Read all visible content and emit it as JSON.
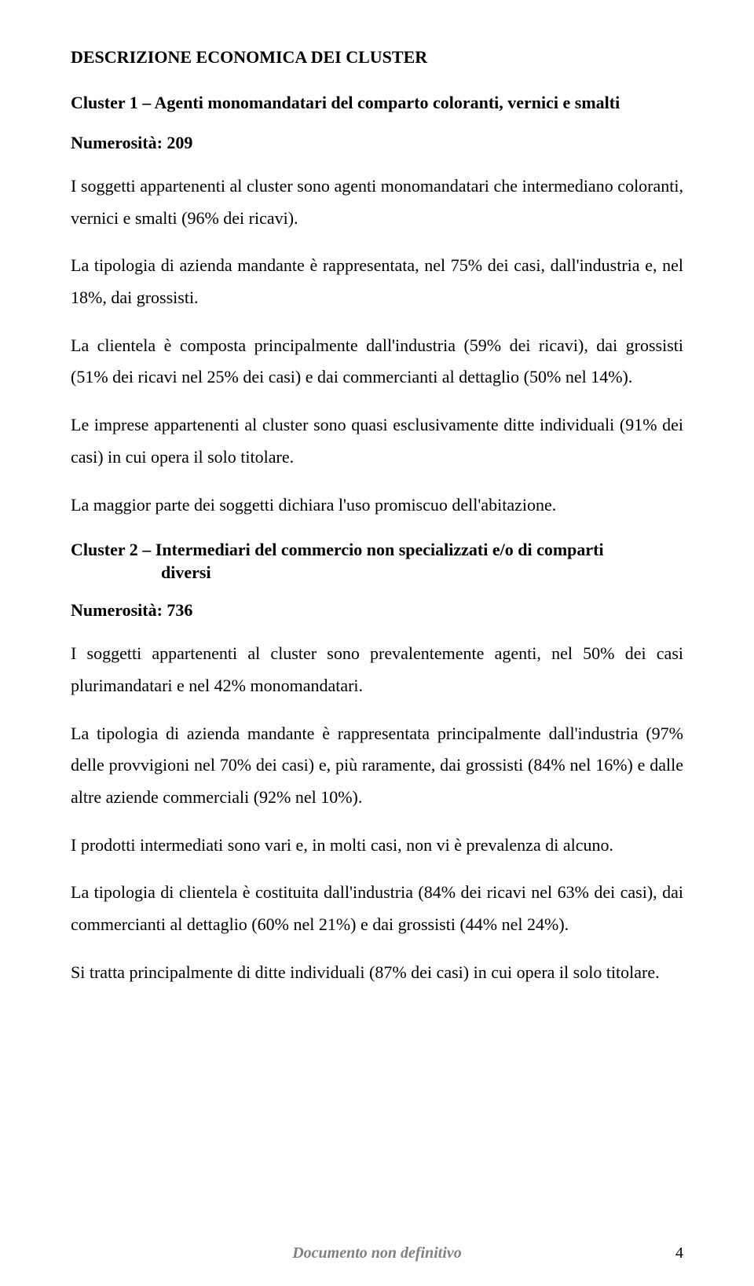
{
  "headingMain": "DESCRIZIONE ECONOMICA DEI CLUSTER",
  "cluster1": {
    "heading": "Cluster 1 – Agenti monomandatari del comparto coloranti, vernici e smalti",
    "numerosita": "Numerosità: 209",
    "p1": "I soggetti appartenenti al cluster sono agenti monomandatari che intermediano coloranti, vernici e smalti (96% dei ricavi).",
    "p2": "La tipologia di azienda mandante è rappresentata, nel 75% dei casi, dall'industria e, nel 18%, dai grossisti.",
    "p3": "La clientela è composta principalmente dall'industria (59% dei ricavi), dai grossisti (51% dei ricavi nel 25% dei casi) e dai commercianti al dettaglio (50% nel 14%).",
    "p4": "Le imprese appartenenti al cluster sono quasi esclusivamente ditte individuali (91% dei casi) in cui opera il solo titolare.",
    "p5": "La maggior parte dei soggetti dichiara l'uso promiscuo dell'abitazione."
  },
  "cluster2": {
    "headingLine1": "Cluster 2 – Intermediari del commercio non specializzati e/o di comparti",
    "headingLine2": "diversi",
    "numerosita": "Numerosità: 736",
    "p1": "I soggetti appartenenti al cluster sono prevalentemente agenti, nel 50% dei casi plurimandatari e nel 42% monomandatari.",
    "p2": "La tipologia di azienda mandante è rappresentata principalmente dall'industria (97% delle provvigioni nel 70% dei casi) e, più raramente, dai grossisti (84% nel 16%) e dalle altre aziende commerciali (92% nel 10%).",
    "p3": "I prodotti intermediati sono vari e, in molti casi, non vi è prevalenza di alcuno.",
    "p4": "La tipologia di clientela è costituita dall'industria (84% dei ricavi nel 63% dei casi), dai commercianti al dettaglio (60% nel 21%) e dai grossisti (44% nel 24%).",
    "p5": "Si tratta principalmente di ditte individuali (87% dei casi) in cui opera il solo titolare."
  },
  "footer": {
    "text": "Documento non definitivo",
    "pageNumber": "4"
  }
}
